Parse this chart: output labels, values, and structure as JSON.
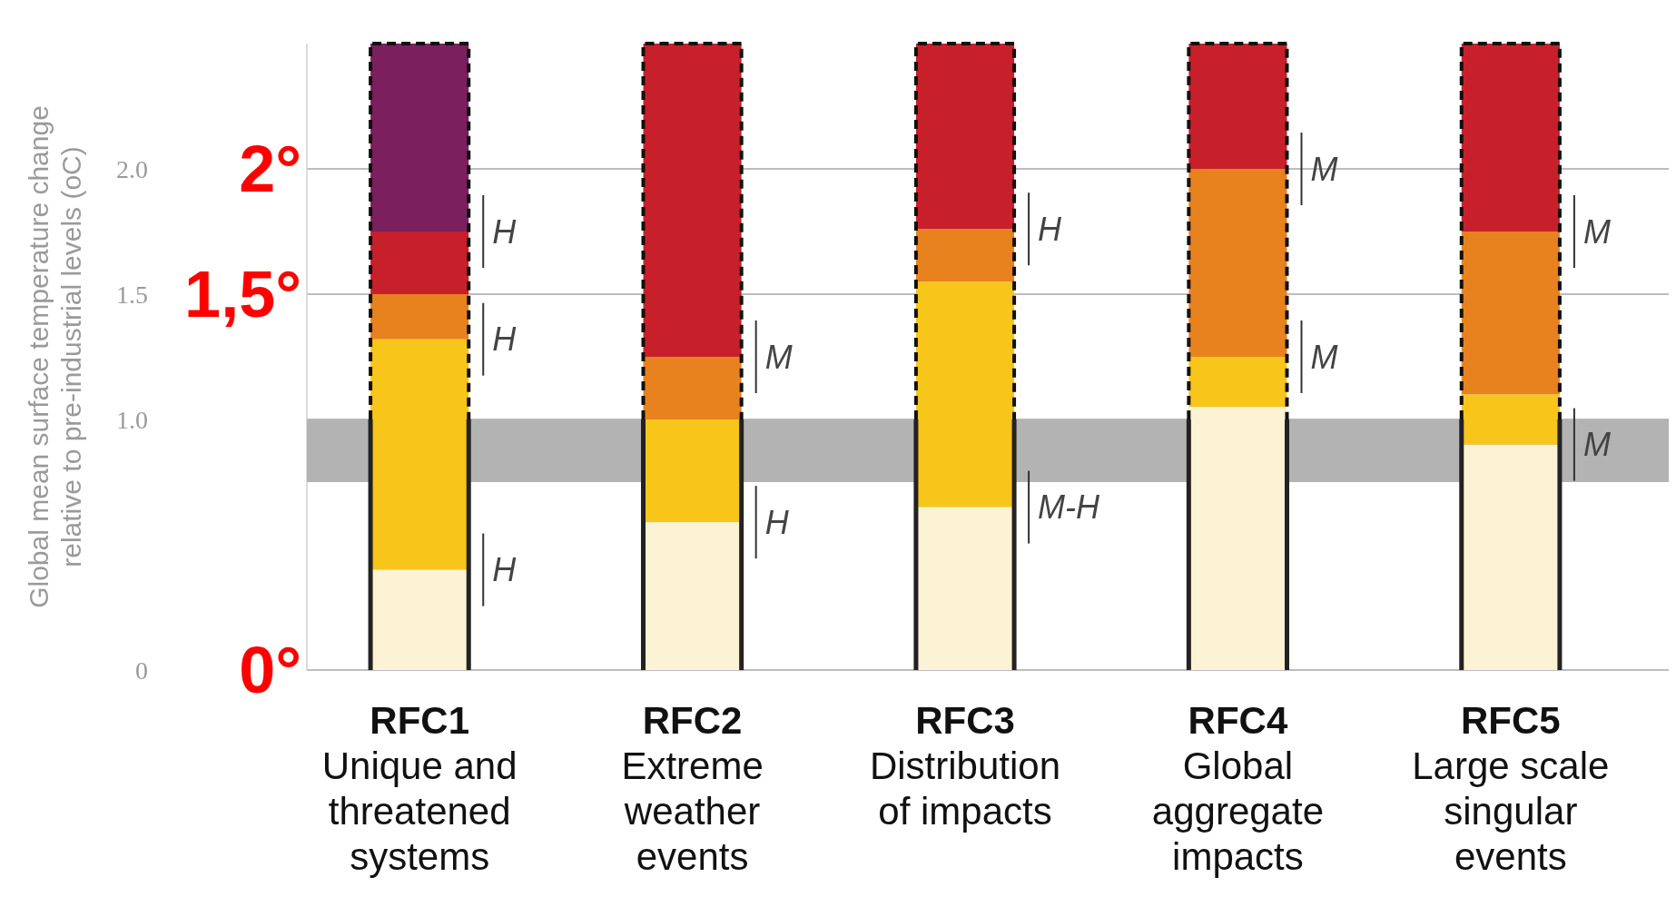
{
  "chart_data": {
    "type": "bar",
    "stacked": true,
    "ylabel": "Global mean surface temperature change\nrelative to pre-industrial levels (oC)",
    "categories": [
      "RFC1\nUnique and\nthreatened\nsystems",
      "RFC2\nExtreme\nweather\nevents",
      "RFC3\nDistribution\nof impacts",
      "RFC4\nGlobal\naggregate\nimpacts",
      "RFC5\nLarge scale\nsingular\nevents"
    ],
    "series": [
      {
        "color": "#fcf2d4",
        "values": [
          0.4,
          0.59,
          0.65,
          1.05,
          0.9
        ]
      },
      {
        "color": "#f8c51a",
        "values": [
          0.92,
          0.41,
          0.9,
          0.2,
          0.2
        ]
      },
      {
        "color": "#e8821e",
        "values": [
          0.18,
          0.25,
          0.21,
          0.75,
          0.65
        ]
      },
      {
        "color": "#c8202a",
        "values": [
          0.25,
          1.25,
          0.74,
          0.5,
          0.75
        ]
      },
      {
        "color": "#7b1f5e",
        "values": [
          0.75,
          0,
          0,
          0,
          0
        ]
      }
    ],
    "ylim": [
      0,
      2.5
    ],
    "yticks": [
      0,
      {
        "value": 1,
        "label": "1.0"
      },
      {
        "value": 1.5,
        "label": "1.5"
      },
      {
        "value": 2,
        "label": "2.0"
      }
    ],
    "y2lim": [
      0,
      2.5
    ],
    "y2ticks": [
      {
        "value": 0,
        "label": "0°"
      },
      {
        "value": 1.5,
        "label": "1,5°"
      },
      {
        "value": 2,
        "label": "2°"
      }
    ],
    "grid": "y",
    "legend": false,
    "bands": [
      {
        "axis": "y",
        "from": 0.75,
        "to": 1.0,
        "color": "#b3b3b3"
      }
    ],
    "annotations": [
      {
        "text": "H",
        "x": "RFC1\nUnique and\nthreatened\nsystems",
        "y": 1.75
      },
      {
        "text": "H",
        "x": "RFC1\nUnique and\nthreatened\nsystems",
        "y": 1.32
      },
      {
        "text": "H",
        "x": "RFC1\nUnique and\nthreatened\nsystems",
        "y": 0.4
      },
      {
        "text": "M",
        "x": "RFC2\nExtreme\nweather\nevents",
        "y": 1.25
      },
      {
        "text": "H",
        "x": "RFC2\nExtreme\nweather\nevents",
        "y": 0.59
      },
      {
        "text": "H",
        "x": "RFC3\nDistribution\nof impacts",
        "y": 1.76
      },
      {
        "text": "M-H",
        "x": "RFC3\nDistribution\nof impacts",
        "y": 0.65
      },
      {
        "text": "M",
        "x": "RFC4\nGlobal\naggregate\nimpacts",
        "y": 2.0
      },
      {
        "text": "M",
        "x": "RFC4\nGlobal\naggregate\nimpacts",
        "y": 1.25
      },
      {
        "text": "M",
        "x": "RFC5\nLarge scale\nsingular\nevents",
        "y": 1.75
      },
      {
        "text": "M",
        "x": "RFC5\nLarge scale\nsingular\nevents",
        "y": 0.9
      }
    ]
  }
}
